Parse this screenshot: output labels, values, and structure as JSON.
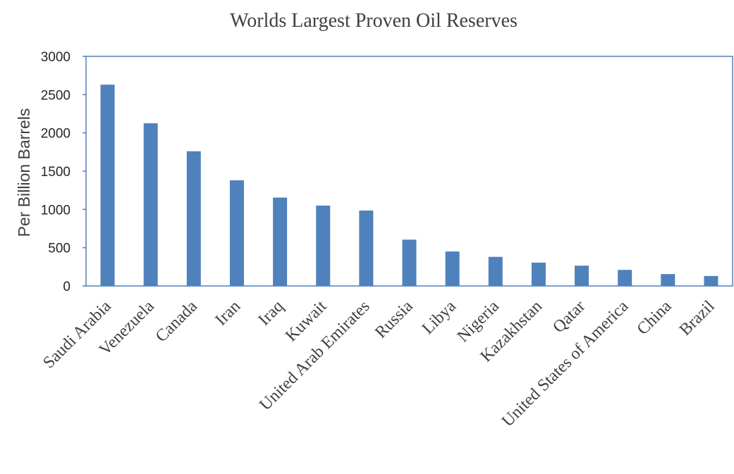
{
  "chart_data": {
    "type": "bar",
    "title": "Worlds Largest Proven Oil Reserves",
    "xlabel": "",
    "ylabel": "Per Billion Barrels",
    "ylim": [
      0,
      3000
    ],
    "yticks": [
      0,
      500,
      1000,
      1500,
      2000,
      2500,
      3000
    ],
    "grid": false,
    "legend": "none",
    "bar_color": "#4F81BD",
    "axis_color": "#4F81BD",
    "categories": [
      "Saudi Arabia",
      "Venezuela",
      "Canada",
      "Iran",
      "Iraq",
      "Kuwait",
      "United Arab Emirates",
      "Russia",
      "Libya",
      "Nigeria",
      "Kazakhstan",
      "Qatar",
      "United States of America",
      "China",
      "Brazil"
    ],
    "values": [
      2630,
      2125,
      1760,
      1380,
      1155,
      1050,
      985,
      605,
      450,
      380,
      305,
      265,
      210,
      155,
      130
    ]
  }
}
